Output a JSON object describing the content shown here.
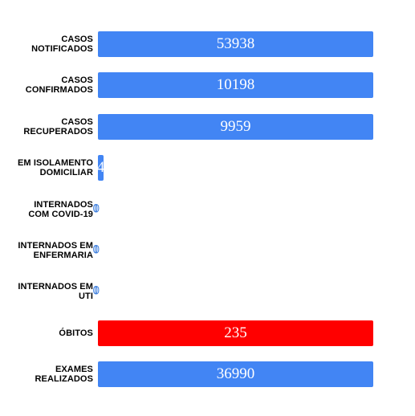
{
  "colors": {
    "default_bar": "#4285f4",
    "highlight_bar": "#ff0000"
  },
  "chart_data": {
    "type": "bar",
    "orientation": "horizontal",
    "categories": [
      [
        "CASOS",
        "NOTIFICADOS"
      ],
      [
        "CASOS",
        "CONFIRMADOS"
      ],
      [
        "CASOS",
        "RECUPERADOS"
      ],
      [
        "EM ISOLAMENTO",
        "DOMICILIAR"
      ],
      [
        "INTERNADOS",
        "COM COVID-19"
      ],
      [
        "INTERNADOS EM",
        "ENFERMARIA"
      ],
      [
        "INTERNADOS EM",
        "UTI"
      ],
      [
        "ÓBITOS"
      ],
      [
        "EXAMES",
        "REALIZADOS"
      ]
    ],
    "values": [
      53938,
      10198,
      9959,
      4,
      0,
      0,
      0,
      235,
      36990
    ],
    "value_labels": [
      "53938",
      "10198",
      "9959",
      "4",
      "0",
      "0",
      "0",
      "235",
      "36990"
    ],
    "bar_colors": [
      "#4285f4",
      "#4285f4",
      "#4285f4",
      "#4285f4",
      "#4285f4",
      "#4285f4",
      "#4285f4",
      "#ff0000",
      "#4285f4"
    ],
    "title": "",
    "xlabel": "",
    "ylabel": "",
    "grid": false,
    "legend": "none"
  }
}
